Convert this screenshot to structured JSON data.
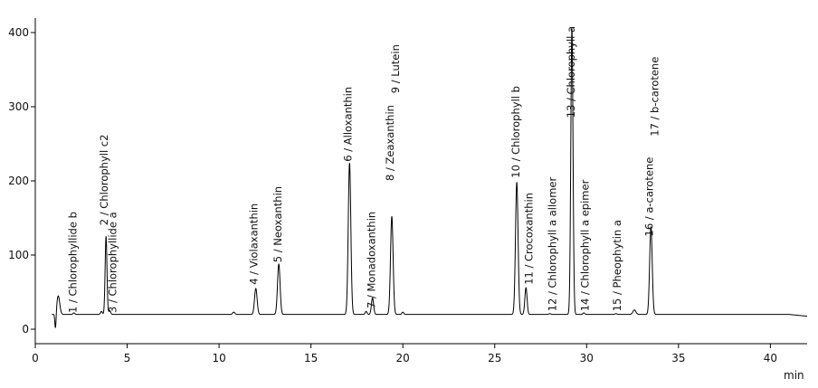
{
  "chart_data": {
    "type": "line",
    "title": "",
    "xlabel": "min",
    "ylabel": "",
    "xlim": [
      0,
      42
    ],
    "ylim": [
      -10,
      410
    ],
    "x_ticks": [
      0,
      5,
      10,
      15,
      20,
      25,
      30,
      35,
      40
    ],
    "y_ticks": [
      0,
      100,
      200,
      300,
      400
    ],
    "grid": false,
    "baseline": 20,
    "peaks": [
      {
        "rt": 1.25,
        "height": 45,
        "width": 0.08
      },
      {
        "rt": 2.1,
        "height": 22,
        "width": 0.05
      },
      {
        "rt": 3.6,
        "height": 24,
        "width": 0.05
      },
      {
        "rt": 3.85,
        "height": 125,
        "width": 0.05
      },
      {
        "rt": 4.05,
        "height": 25,
        "width": 0.05
      },
      {
        "rt": 10.8,
        "height": 23,
        "width": 0.06
      },
      {
        "rt": 12.0,
        "height": 55,
        "width": 0.07
      },
      {
        "rt": 13.25,
        "height": 88,
        "width": 0.07
      },
      {
        "rt": 17.1,
        "height": 224,
        "width": 0.07
      },
      {
        "rt": 18.0,
        "height": 24,
        "width": 0.05
      },
      {
        "rt": 18.35,
        "height": 42,
        "width": 0.06
      },
      {
        "rt": 19.4,
        "height": 152,
        "width": 0.07
      },
      {
        "rt": 20.0,
        "height": 23,
        "width": 0.05
      },
      {
        "rt": 26.2,
        "height": 198,
        "width": 0.07
      },
      {
        "rt": 26.7,
        "height": 56,
        "width": 0.06
      },
      {
        "rt": 28.0,
        "height": 21,
        "width": 0.05
      },
      {
        "rt": 29.2,
        "height": 405,
        "width": 0.06
      },
      {
        "rt": 29.85,
        "height": 22,
        "width": 0.05
      },
      {
        "rt": 31.6,
        "height": 21,
        "width": 0.05
      },
      {
        "rt": 32.6,
        "height": 26,
        "width": 0.08
      },
      {
        "rt": 33.5,
        "height": 138,
        "width": 0.07
      }
    ],
    "annotations": [
      {
        "text": "1 / Chlorophyllide b",
        "x": 2.05,
        "y": 22
      },
      {
        "text": "2 / Chlorophyll c2",
        "x": 3.75,
        "y": 140
      },
      {
        "text": "3 / Chlorophyllide a",
        "x": 4.2,
        "y": 22
      },
      {
        "text": "4 / Violaxanthin",
        "x": 11.9,
        "y": 60
      },
      {
        "text": "5 / Neoxanthin",
        "x": 13.2,
        "y": 90
      },
      {
        "text": "6 / Alloxanthin",
        "x": 17.0,
        "y": 226
      },
      {
        "text": "7 / Monadoxanthin",
        "x": 18.3,
        "y": 28
      },
      {
        "text": "8 / Zeaxanthin",
        "x": 19.3,
        "y": 200
      },
      {
        "text": "9 / Lutein",
        "x": 19.6,
        "y": 318
      },
      {
        "text": "10 / Chlorophyll b",
        "x": 26.15,
        "y": 204
      },
      {
        "text": "11 / Crocoxanthin",
        "x": 26.85,
        "y": 60
      },
      {
        "text": "12 / Chlorophyll a allomer",
        "x": 28.15,
        "y": 24
      },
      {
        "text": "13 / Chlorophyll a",
        "x": 29.15,
        "y": 285
      },
      {
        "text": "14 / Chlorophyll a epimer",
        "x": 29.9,
        "y": 24
      },
      {
        "text": "15 / Pheophytin a",
        "x": 31.65,
        "y": 24
      },
      {
        "text": "16 / a-carotene",
        "x": 33.4,
        "y": 125
      },
      {
        "text": "17 / b-carotene",
        "x": 33.7,
        "y": 260
      }
    ]
  }
}
